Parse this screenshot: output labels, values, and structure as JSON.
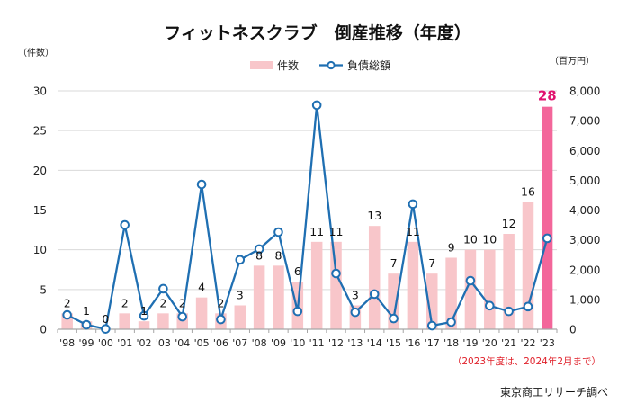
{
  "colors": {
    "bar": "#f8c6ca",
    "bar_highlight": "#f3669a",
    "line": "#1f6fb2",
    "grid": "#d9d9d9",
    "highlight_label": "#e0136e",
    "note": "#e0202a"
  },
  "chart_data": {
    "type": "bar+line",
    "title": "フィットネスクラブ　倒産推移（年度）",
    "left_axis_unit": "（件数）",
    "right_axis_unit": "（百万円）",
    "categories": [
      "'98",
      "'99",
      "'00",
      "'01",
      "'02",
      "'03",
      "'04",
      "'05",
      "'06",
      "'07",
      "'08",
      "'09",
      "'10",
      "'11",
      "'12",
      "'13",
      "'14",
      "'15",
      "'16",
      "'17",
      "'18",
      "'19",
      "'20",
      "'21",
      "'22",
      "'23"
    ],
    "series": [
      {
        "name": "件数",
        "type": "bar",
        "axis": "left",
        "values": [
          2,
          1,
          0,
          2,
          1,
          2,
          2,
          4,
          2,
          3,
          8,
          8,
          6,
          11,
          11,
          3,
          13,
          7,
          11,
          7,
          9,
          10,
          10,
          12,
          16,
          28
        ],
        "highlight_last": true
      },
      {
        "name": "負債総額",
        "type": "line",
        "axis": "right",
        "values": [
          480,
          150,
          10,
          3500,
          450,
          1360,
          420,
          4860,
          330,
          2330,
          2690,
          3260,
          600,
          7520,
          1870,
          570,
          1180,
          360,
          4200,
          120,
          240,
          1630,
          790,
          600,
          760,
          3050
        ]
      }
    ],
    "left_axis": {
      "ylim": [
        0,
        30
      ],
      "ticks": [
        "0",
        "5",
        "10",
        "15",
        "20",
        "25",
        "30"
      ]
    },
    "right_axis": {
      "ylim": [
        0,
        8000
      ],
      "ticks": [
        "0",
        "1,000",
        "2,000",
        "3,000",
        "4,000",
        "5,000",
        "6,000",
        "7,000",
        "8,000"
      ]
    },
    "grid": true,
    "legend_position": "top-center",
    "note": "（2023年度は、2024年2月まで）",
    "source": "東京商工リサーチ調べ"
  }
}
